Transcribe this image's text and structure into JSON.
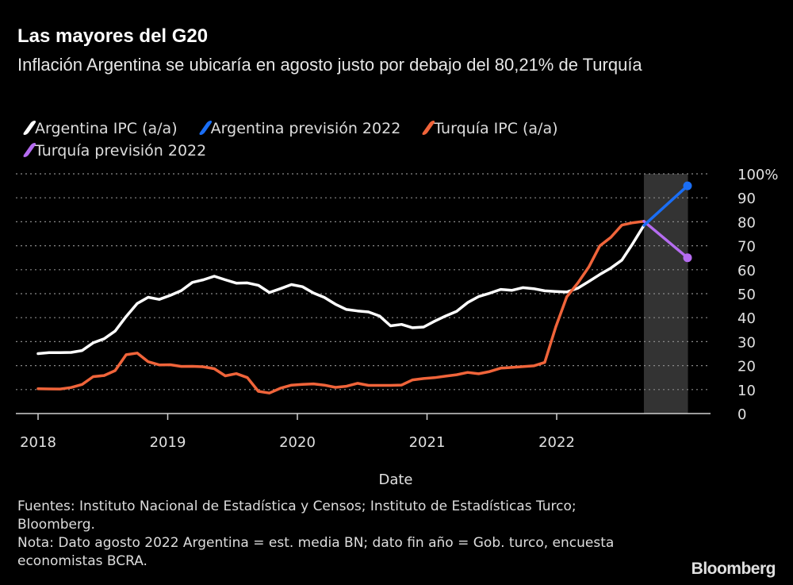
{
  "title": "Las mayores del G20",
  "subtitle": "Inflación Argentina se ubicaría en agosto justo por debajo del 80,21% de Turquía",
  "legend": [
    {
      "label": "Argentina IPC (a/a)",
      "color": "#ffffff"
    },
    {
      "label": "Argentina previsión 2022",
      "color": "#1a6ef5"
    },
    {
      "label": "Turquía IPC (a/a)",
      "color": "#f0643a"
    },
    {
      "label": "Turquía previsión 2022",
      "color": "#b56cf0"
    }
  ],
  "footer": {
    "sources": "Fuentes: Instituto Nacional de Estadística y Censos; Instituto de Estadísticas Turco; Bloomberg.",
    "note": "Nota: Dato agosto 2022 Argentina = est. media BN; dato fin año = Gob. turco, encuesta economistas BCRA."
  },
  "logo": "Bloomberg",
  "chart_data": {
    "type": "line",
    "xlabel": "Date",
    "ylabel": "",
    "ylim": [
      0,
      100
    ],
    "y_ticks": [
      "0",
      "10",
      "20",
      "30",
      "40",
      "50",
      "60",
      "70",
      "80",
      "90",
      "100%"
    ],
    "x_ticks": [
      "2018",
      "2019",
      "2020",
      "2021",
      "2022"
    ],
    "grid": "horizontal dotted",
    "y_axis_position": "right",
    "legend_position": "top",
    "shaded_forecast_period": [
      "2022-08",
      "2022-12"
    ],
    "shade_color": "#333333",
    "series": [
      {
        "name": "Argentina IPC (a/a)",
        "color": "#ffffff",
        "start": "2018-01",
        "frequency": "monthly",
        "values": [
          25.0,
          25.4,
          25.4,
          25.5,
          26.3,
          29.5,
          31.2,
          34.4,
          40.5,
          45.9,
          48.5,
          47.6,
          49.3,
          51.3,
          54.7,
          55.8,
          57.3,
          55.8,
          54.4,
          54.5,
          53.5,
          50.5,
          52.1,
          53.8,
          52.9,
          50.3,
          48.4,
          45.6,
          43.4,
          42.8,
          42.4,
          40.7,
          36.6,
          37.2,
          35.8,
          36.1,
          38.5,
          40.7,
          42.6,
          46.3,
          48.8,
          50.2,
          51.8,
          51.4,
          52.5,
          52.1,
          51.2,
          50.9,
          50.7,
          52.3,
          55.1,
          58.0,
          60.7,
          64.0,
          71.0,
          78.5
        ]
      },
      {
        "name": "Argentina previsión 2022",
        "color": "#1a6ef5",
        "dates": [
          "2022-08",
          "2022-12"
        ],
        "values": [
          78.5,
          95
        ]
      },
      {
        "name": "Turquía IPC (a/a)",
        "color": "#f0643a",
        "start": "2018-01",
        "frequency": "monthly",
        "values": [
          10.35,
          10.26,
          10.23,
          10.85,
          12.15,
          15.39,
          15.85,
          17.9,
          24.52,
          25.24,
          21.62,
          20.3,
          20.35,
          19.67,
          19.71,
          19.5,
          18.71,
          15.72,
          16.65,
          15.01,
          9.26,
          8.55,
          10.56,
          11.84,
          12.15,
          12.37,
          11.86,
          10.94,
          11.39,
          12.62,
          11.76,
          11.77,
          11.75,
          11.89,
          14.03,
          14.6,
          14.97,
          15.61,
          16.19,
          17.14,
          16.59,
          17.53,
          18.95,
          19.25,
          19.58,
          19.89,
          21.31,
          36.08,
          48.69,
          54.44,
          61.14,
          69.97,
          73.5,
          78.62,
          79.6,
          80.21
        ]
      },
      {
        "name": "Turquía previsión 2022",
        "color": "#b56cf0",
        "dates": [
          "2022-08",
          "2022-12"
        ],
        "values": [
          80.21,
          65
        ]
      }
    ]
  }
}
